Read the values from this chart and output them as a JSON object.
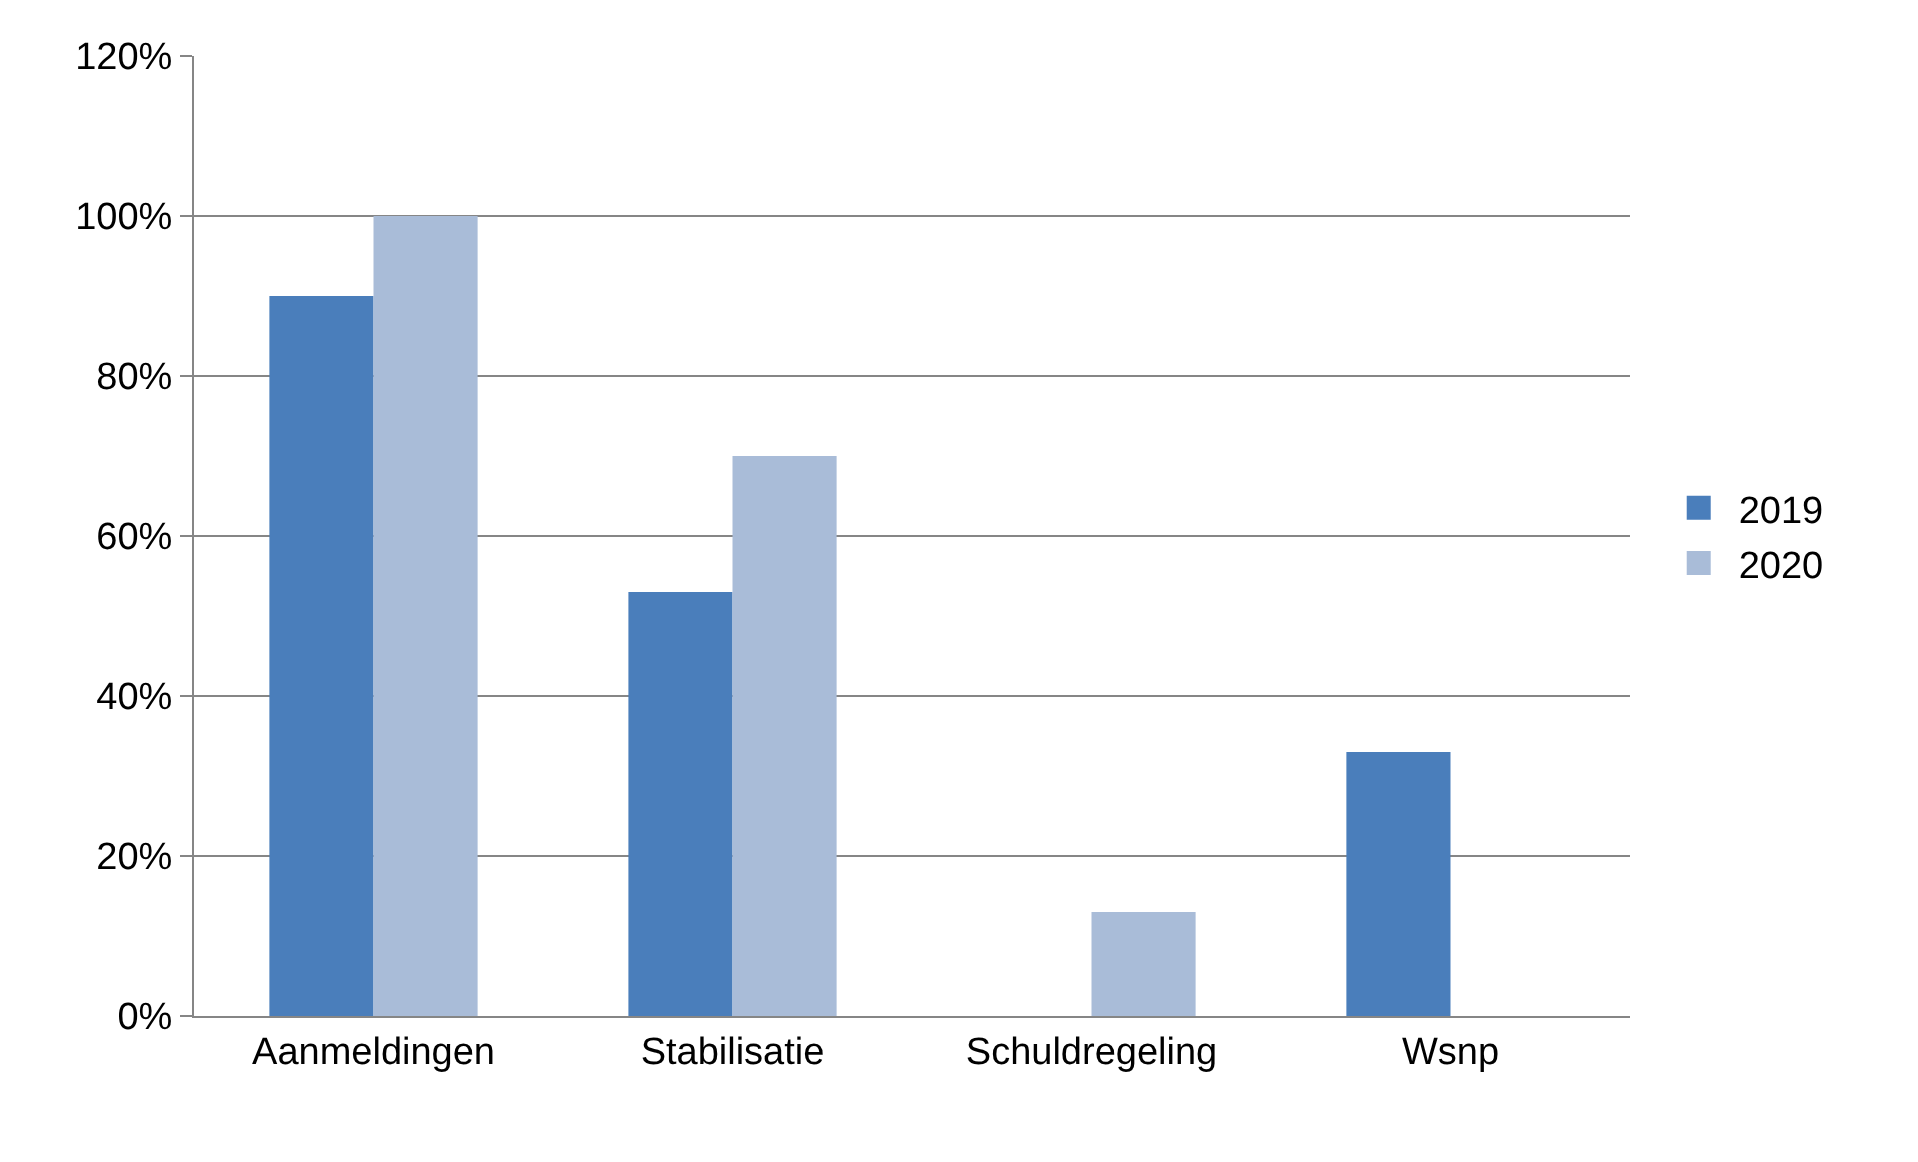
{
  "chart_data": {
    "type": "bar",
    "categories": [
      "Aanmeldingen",
      "Stabilisatie",
      "Schuldregeling",
      "Wsnp"
    ],
    "series": [
      {
        "name": "2019",
        "color": "#4a7ebb",
        "values": [
          90,
          53,
          0,
          33
        ]
      },
      {
        "name": "2020",
        "color": "#a9bcd8",
        "values": [
          100,
          70,
          13,
          0
        ]
      }
    ],
    "ylim": [
      0,
      120
    ],
    "yticks": [
      {
        "value": 0,
        "label": "0%"
      },
      {
        "value": 20,
        "label": "20%"
      },
      {
        "value": 40,
        "label": "40%"
      },
      {
        "value": 60,
        "label": "60%"
      },
      {
        "value": 80,
        "label": "80%"
      },
      {
        "value": 100,
        "label": "100%"
      },
      {
        "value": 120,
        "label": "120%"
      }
    ],
    "grid": "y",
    "legend": "right"
  }
}
